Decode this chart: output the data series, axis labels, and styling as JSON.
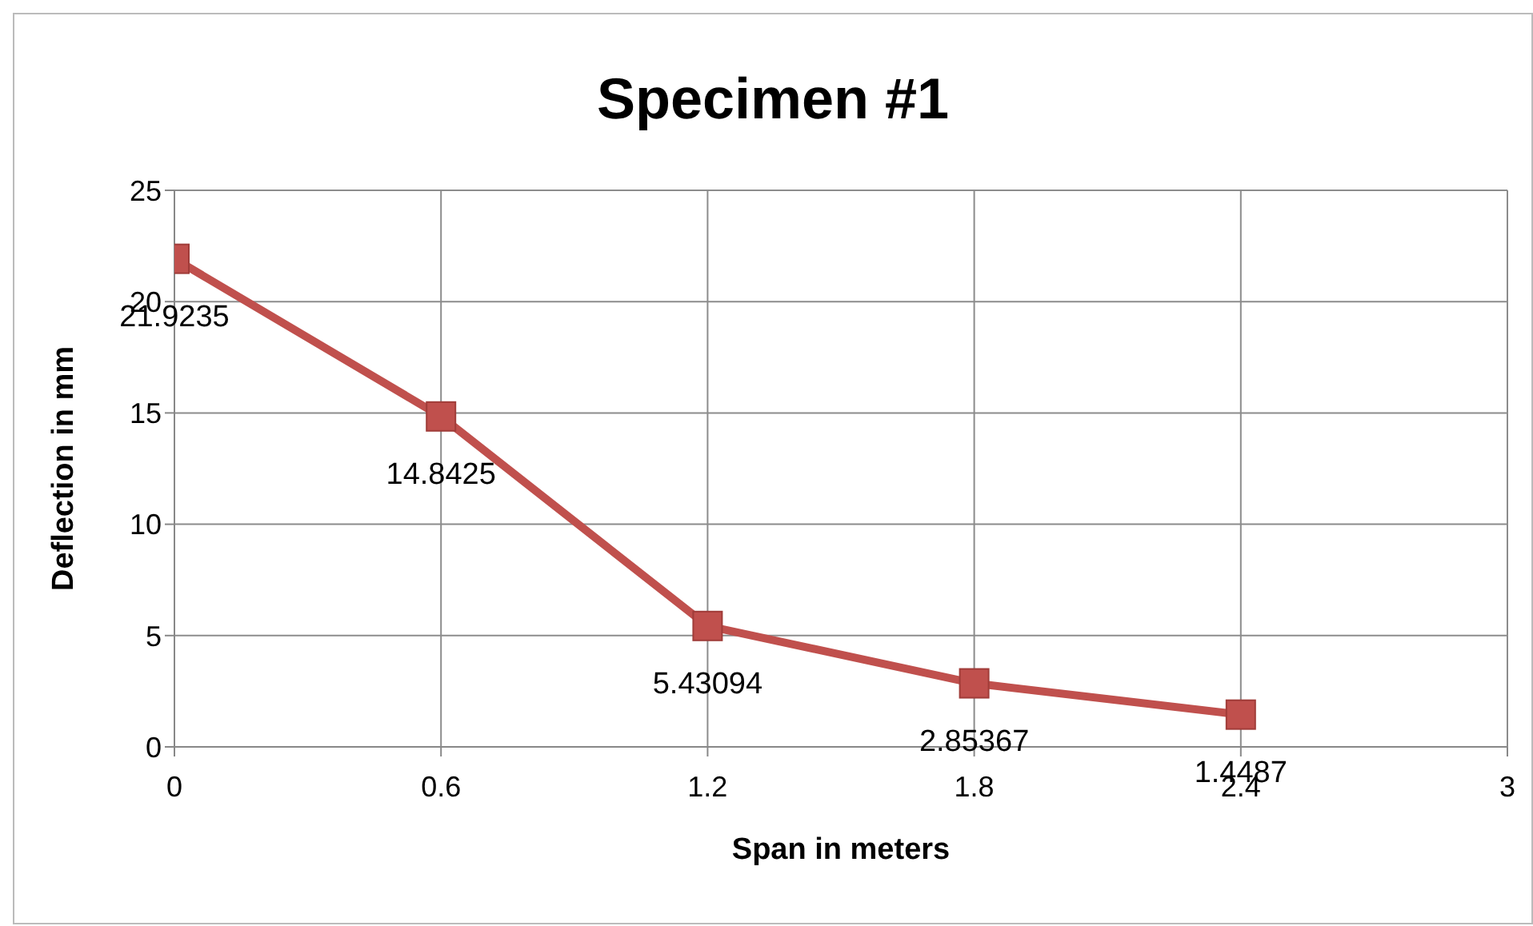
{
  "chart_data": {
    "type": "line",
    "title": "Specimen #1",
    "xlabel": "Span in meters",
    "ylabel": "Deflection in mm",
    "x": [
      0,
      0.6,
      1.2,
      1.8,
      2.4
    ],
    "series": [
      {
        "color": "#c0504d",
        "values": [
          21.9235,
          14.8425,
          5.43094,
          2.85367,
          1.4487
        ]
      }
    ],
    "xlim": [
      0,
      3
    ],
    "xticks": [
      0,
      0.6,
      1.2,
      1.8,
      2.4,
      3
    ],
    "ylim": [
      0,
      25
    ],
    "yticks": [
      0,
      5,
      10,
      15,
      20,
      25
    ],
    "grid": true,
    "marker": "square",
    "line_style": "solid",
    "data_labels": true,
    "legend": false
  }
}
